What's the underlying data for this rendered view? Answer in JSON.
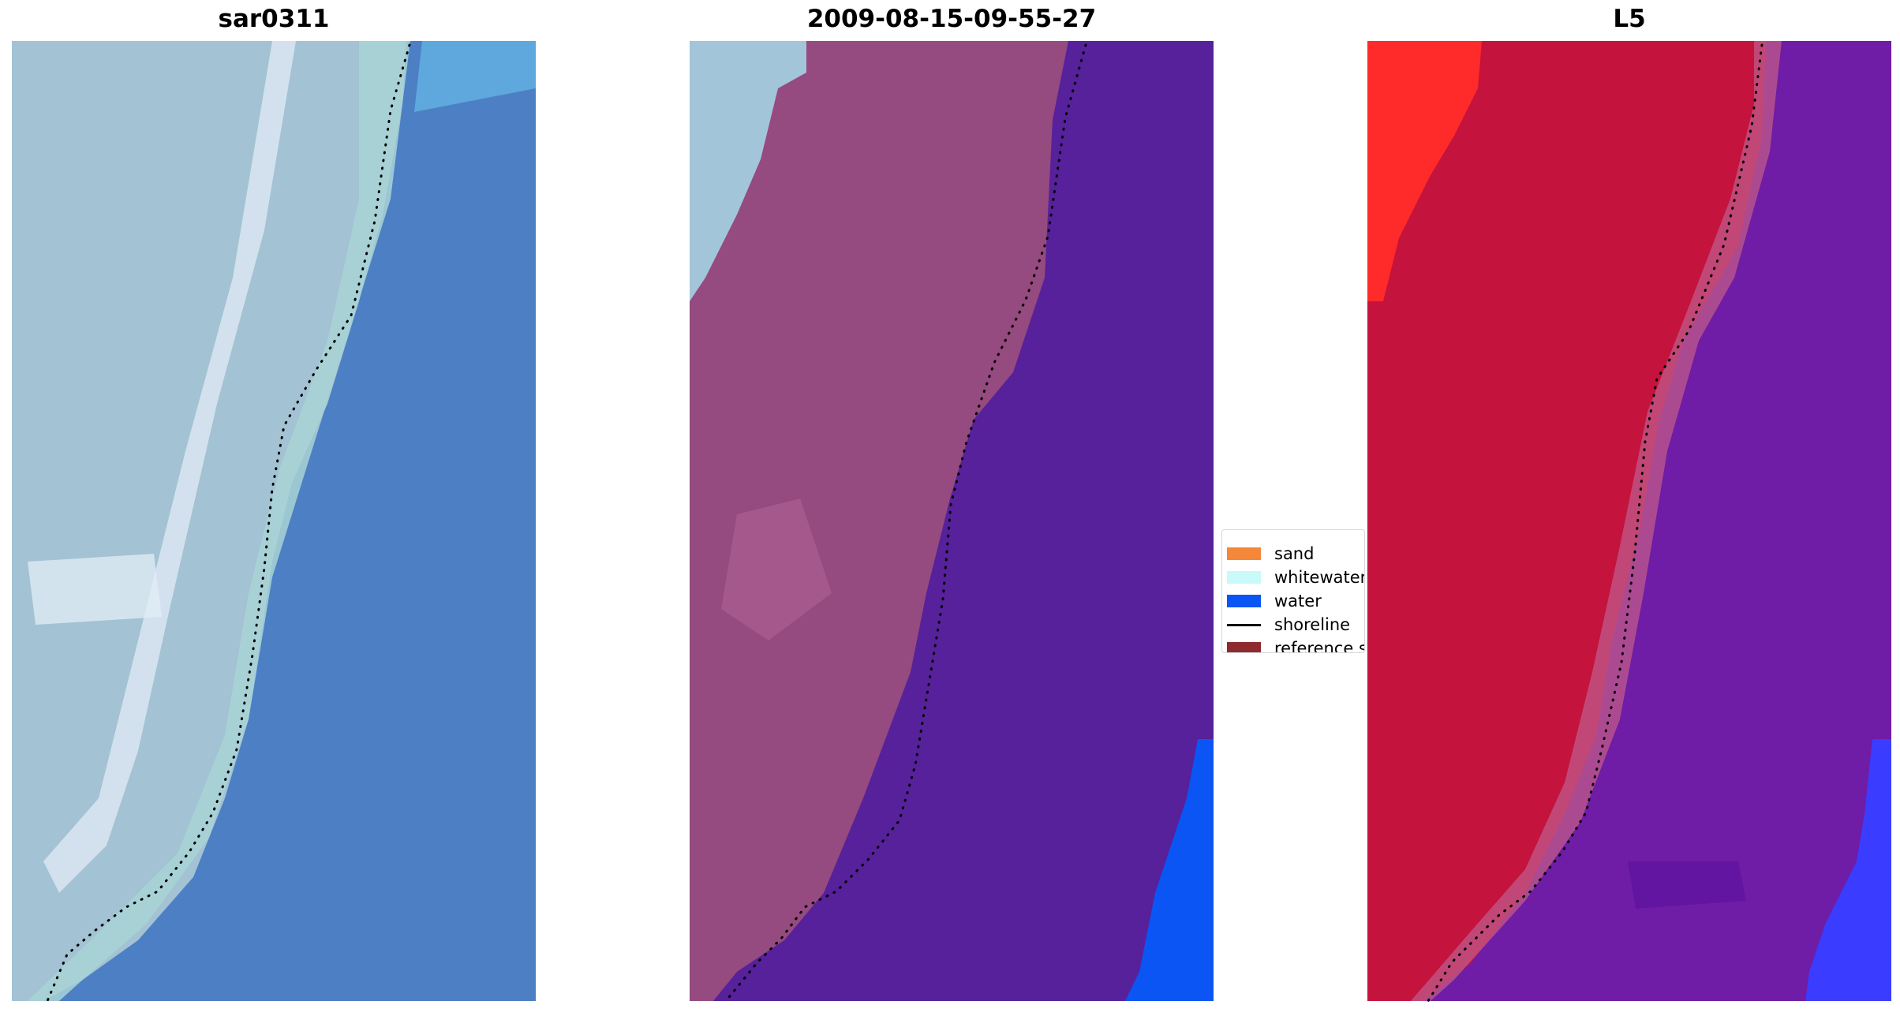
{
  "panels": [
    {
      "id": "rgb",
      "title": "sar0311"
    },
    {
      "id": "classified",
      "title": "2009-08-15-09-55-27"
    },
    {
      "id": "index",
      "title": "L5"
    }
  ],
  "legend": {
    "items": [
      {
        "label": "sand",
        "kind": "patch",
        "color": "#f5873a"
      },
      {
        "label": "whitewater",
        "kind": "patch",
        "color": "#c8fafa"
      },
      {
        "label": "water",
        "kind": "patch",
        "color": "#0b55f5"
      },
      {
        "label": "shoreline",
        "kind": "line",
        "color": "#000000"
      },
      {
        "label": "reference s",
        "kind": "patch",
        "color": "#8f2a2e"
      }
    ]
  },
  "colors": {
    "rgb_land": "#9fc0d3",
    "rgb_white": "#d6ecf0",
    "rgb_water": "#4a7fc5",
    "rgb_water_light": "#5aa6dd",
    "class_whitewater": "#a3c5d9",
    "class_land": "#96487f",
    "class_water": "#56219a",
    "class_water_blue": "#0b55f5",
    "index_red": "#c4133d",
    "index_bright_red": "#ff2a2a",
    "index_purple": "#6f1ca6",
    "index_blue": "#2a2cff",
    "shoreline": "#000000"
  }
}
